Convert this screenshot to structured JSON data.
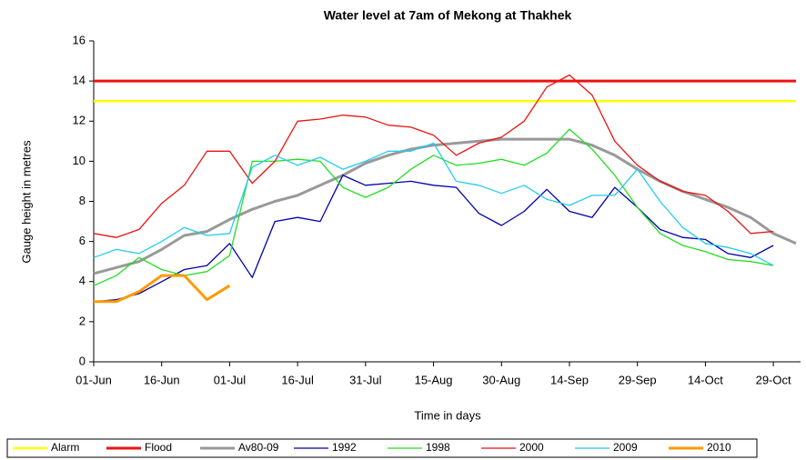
{
  "chart_data": {
    "type": "line",
    "title": "Water level at 7am of Mekong at Thakhek",
    "x_label": "Time in days",
    "y_label": "Gauge height in metres",
    "x": [
      "06-01",
      "06-06",
      "06-11",
      "06-16",
      "06-21",
      "06-26",
      "07-01",
      "07-06",
      "07-11",
      "07-16",
      "07-21",
      "07-26",
      "07-31",
      "08-05",
      "08-10",
      "08-15",
      "08-20",
      "08-25",
      "08-30",
      "09-04",
      "09-09",
      "09-14",
      "09-19",
      "09-24",
      "09-29",
      "10-04",
      "10-09",
      "10-14",
      "10-19",
      "10-24",
      "10-29",
      "11-03"
    ],
    "xlim": [
      "06-01",
      "11-04"
    ],
    "xticks": [
      {
        "value": "06-01",
        "label": "01-Jun"
      },
      {
        "value": "06-16",
        "label": "16-Jun"
      },
      {
        "value": "07-01",
        "label": "01-Jul"
      },
      {
        "value": "07-16",
        "label": "16-Jul"
      },
      {
        "value": "07-31",
        "label": "31-Jul"
      },
      {
        "value": "08-15",
        "label": "15-Aug"
      },
      {
        "value": "08-30",
        "label": "30-Aug"
      },
      {
        "value": "09-14",
        "label": "14-Sep"
      },
      {
        "value": "09-29",
        "label": "29-Sep"
      },
      {
        "value": "10-14",
        "label": "14-Oct"
      },
      {
        "value": "10-29",
        "label": "29-Oct"
      }
    ],
    "ylim": [
      0,
      16
    ],
    "yticks": [
      0,
      2,
      4,
      6,
      8,
      10,
      12,
      14,
      16
    ],
    "grid": false,
    "legend": "bottom",
    "series": [
      {
        "name": "Alarm",
        "color": "#ffff00",
        "width": 2.5,
        "values": [
          13,
          13,
          13,
          13,
          13,
          13,
          13,
          13,
          13,
          13,
          13,
          13,
          13,
          13,
          13,
          13,
          13,
          13,
          13,
          13,
          13,
          13,
          13,
          13,
          13,
          13,
          13,
          13,
          13,
          13,
          13,
          13
        ]
      },
      {
        "name": "Flood",
        "color": "#ee1111",
        "width": 3,
        "values": [
          14,
          14,
          14,
          14,
          14,
          14,
          14,
          14,
          14,
          14,
          14,
          14,
          14,
          14,
          14,
          14,
          14,
          14,
          14,
          14,
          14,
          14,
          14,
          14,
          14,
          14,
          14,
          14,
          14,
          14,
          14,
          14
        ]
      },
      {
        "name": "Av80-09",
        "color": "#999999",
        "width": 3,
        "values": [
          4.4,
          4.7,
          5.0,
          5.6,
          6.3,
          6.5,
          7.1,
          7.6,
          8.0,
          8.3,
          8.8,
          9.3,
          9.9,
          10.3,
          10.6,
          10.8,
          10.9,
          11.0,
          11.1,
          11.1,
          11.1,
          11.1,
          10.8,
          10.3,
          9.6,
          9.0,
          8.5,
          8.1,
          7.7,
          7.2,
          6.4,
          5.9
        ]
      },
      {
        "name": "1992",
        "color": "#0000aa",
        "width": 1.3,
        "values": [
          3.0,
          3.1,
          3.4,
          4.0,
          4.6,
          4.8,
          5.9,
          4.2,
          7.0,
          7.2,
          7.0,
          9.3,
          8.8,
          8.9,
          9.0,
          8.8,
          8.7,
          7.4,
          6.8,
          7.5,
          8.6,
          7.5,
          7.2,
          8.7,
          7.7,
          6.6,
          6.2,
          6.1,
          5.4,
          5.2,
          5.8,
          null
        ]
      },
      {
        "name": "1998",
        "color": "#22dd22",
        "width": 1.3,
        "values": [
          3.8,
          4.3,
          5.2,
          4.6,
          4.3,
          4.5,
          5.3,
          10.0,
          10.0,
          10.1,
          10.0,
          8.7,
          8.2,
          8.7,
          9.6,
          10.3,
          9.8,
          9.9,
          10.1,
          9.8,
          10.4,
          11.6,
          10.6,
          9.3,
          7.7,
          6.4,
          5.8,
          5.5,
          5.1,
          5.0,
          4.8,
          null
        ]
      },
      {
        "name": "2000",
        "color": "#ee1111",
        "width": 1.3,
        "values": [
          6.4,
          6.2,
          6.6,
          7.9,
          8.8,
          10.5,
          10.5,
          8.9,
          10.0,
          12.0,
          12.1,
          12.3,
          12.2,
          11.8,
          11.7,
          11.3,
          10.3,
          10.9,
          11.2,
          12.0,
          13.7,
          14.3,
          13.3,
          11.0,
          9.8,
          9.0,
          8.5,
          8.3,
          7.5,
          6.4,
          6.5,
          null
        ]
      },
      {
        "name": "2009",
        "color": "#22ccee",
        "width": 1.3,
        "values": [
          5.2,
          5.6,
          5.4,
          6.0,
          6.7,
          6.3,
          6.4,
          9.7,
          10.3,
          9.8,
          10.2,
          9.6,
          10.0,
          10.5,
          10.5,
          10.9,
          9.0,
          8.8,
          8.4,
          8.8,
          8.1,
          7.8,
          8.3,
          8.3,
          9.6,
          8.0,
          6.7,
          5.9,
          5.7,
          5.4,
          4.8,
          null
        ]
      },
      {
        "name": "2010",
        "color": "#ff9900",
        "width": 3,
        "values": [
          3.0,
          3.0,
          3.5,
          4.3,
          4.3,
          3.1,
          3.8,
          null,
          null,
          null,
          null,
          null,
          null,
          null,
          null,
          null,
          null,
          null,
          null,
          null,
          null,
          null,
          null,
          null,
          null,
          null,
          null,
          null,
          null,
          null,
          null,
          null
        ]
      }
    ]
  }
}
